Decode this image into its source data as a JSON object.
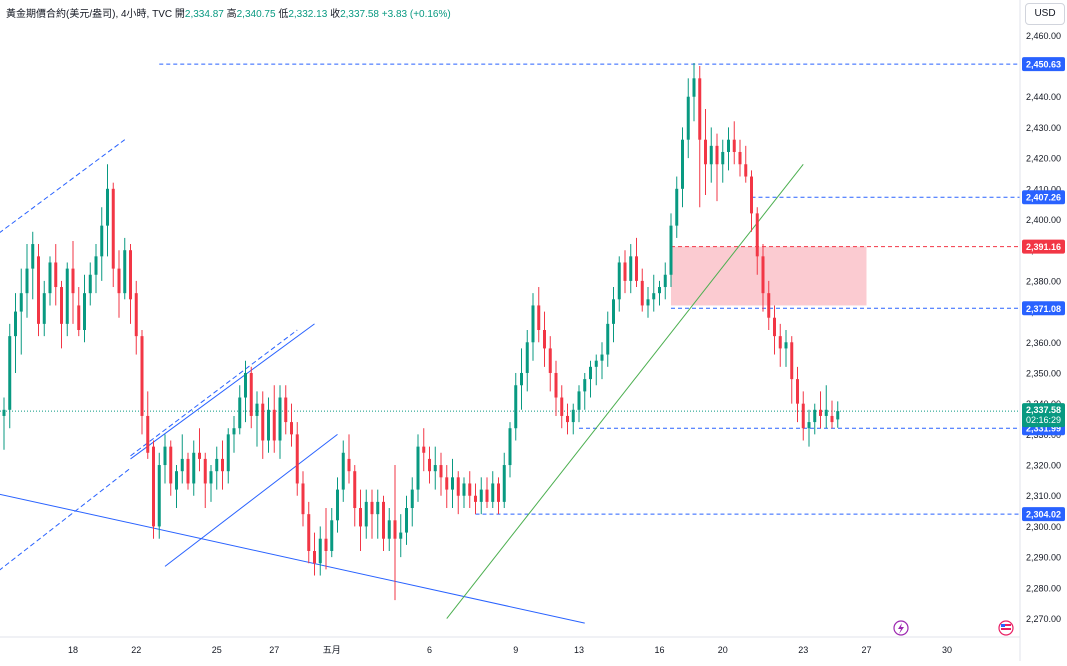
{
  "legend": {
    "symbol": "黃金期價合約(美元/盎司), 4小時, TVC",
    "open_label": "開",
    "open": "2,334.87",
    "high_label": "高",
    "high": "2,340.75",
    "low_label": "低",
    "low": "2,332.13",
    "close_label": "收",
    "close": "2,337.58",
    "change": "+3.83 (+0.16%)"
  },
  "currency": "USD",
  "colors": {
    "up": "#089981",
    "down": "#f23645",
    "axis_text": "#131722",
    "level_line": "#2962ff",
    "trend_blue": "#2962ff",
    "trend_green": "#4caf50",
    "zone_fill": "#f7a1ab"
  },
  "chart_data": {
    "type": "candlestick",
    "ylim": [
      2263,
      2465
    ],
    "y_ticks": [
      2270,
      2280,
      2290,
      2300,
      2310,
      2320,
      2330,
      2340,
      2350,
      2360,
      2370,
      2380,
      2390,
      2400,
      2410,
      2420,
      2430,
      2440,
      2450,
      2460
    ],
    "y_tick_labels": [
      "2,270.00",
      "2,280.00",
      "2,290.00",
      "2,300.00",
      "2,310.00",
      "2,320.00",
      "2,330.00",
      "2,340.00",
      "2,350.00",
      "2,360.00",
      "2,370.00",
      "2,380.00",
      "2,390.00",
      "2,400.00",
      "2,410.00",
      "2,420.00",
      "2,430.00",
      "2,440.00",
      "2,450.00",
      "2,460.00"
    ],
    "x_ticks": [
      {
        "label": "18",
        "bar": 12
      },
      {
        "label": "22",
        "bar": 23
      },
      {
        "label": "25",
        "bar": 37
      },
      {
        "label": "27",
        "bar": 47
      },
      {
        "label": "五月",
        "bar": 57
      },
      {
        "label": "6",
        "bar": 74
      },
      {
        "label": "9",
        "bar": 89
      },
      {
        "label": "13",
        "bar": 100
      },
      {
        "label": "16",
        "bar": 114
      },
      {
        "label": "20",
        "bar": 125
      },
      {
        "label": "23",
        "bar": 139
      },
      {
        "label": "27",
        "bar": 150
      },
      {
        "label": "30",
        "bar": 164
      }
    ],
    "price_levels": [
      {
        "value": 2450.63,
        "label": "2,450.63",
        "color": "#2962ff",
        "from_bar": 27
      },
      {
        "value": 2407.26,
        "label": "2,407.26",
        "color": "#2962ff",
        "from_bar": 130
      },
      {
        "value": 2391.16,
        "label": "2,391.16",
        "color": "#f23645",
        "from_bar": 116
      },
      {
        "value": 2371.08,
        "label": "2,371.08",
        "color": "#2962ff",
        "from_bar": 116
      },
      {
        "value": 2331.99,
        "label": "2,331.99",
        "color": "#2962ff",
        "from_bar": 100
      },
      {
        "value": 2304.02,
        "label": "2,304.02",
        "color": "#2962ff",
        "from_bar": 82
      }
    ],
    "last_price": {
      "value": 2337.58,
      "label": "2,337.58",
      "countdown": "02:16:29"
    },
    "zone": {
      "from_bar": 116,
      "to_bar": 150,
      "y1": 2372,
      "y2": 2391.16
    },
    "trendlines": [
      {
        "x1": -2,
        "y1": 2311,
        "x2": 101,
        "y2": 2268.5,
        "color": "#2962ff",
        "dash": false
      },
      {
        "x1": 28,
        "y1": 2287,
        "x2": 58,
        "y2": 2330,
        "color": "#2962ff",
        "dash": false
      },
      {
        "x1": 22,
        "y1": 2322,
        "x2": 54,
        "y2": 2366,
        "color": "#2962ff",
        "dash": false
      },
      {
        "x1": 22,
        "y1": 2323,
        "x2": 51,
        "y2": 2364,
        "color": "#2962ff",
        "dash": true
      },
      {
        "x1": -2,
        "y1": 2284,
        "x2": 22,
        "y2": 2319,
        "color": "#2962ff",
        "dash": true
      },
      {
        "x1": -2,
        "y1": 2394,
        "x2": 21,
        "y2": 2426,
        "color": "#2962ff",
        "dash": true
      },
      {
        "x1": 77,
        "y1": 2270,
        "x2": 139,
        "y2": 2418,
        "color": "#4caf50",
        "dash": false
      }
    ],
    "ohlc": [
      [
        2336,
        2342,
        2325,
        2338
      ],
      [
        2338,
        2366,
        2332,
        2362
      ],
      [
        2362,
        2376,
        2350,
        2370
      ],
      [
        2370,
        2384,
        2356,
        2376
      ],
      [
        2376,
        2392,
        2368,
        2384
      ],
      [
        2384,
        2396,
        2374,
        2392
      ],
      [
        2388,
        2392,
        2362,
        2366
      ],
      [
        2366,
        2380,
        2362,
        2376
      ],
      [
        2376,
        2388,
        2372,
        2386
      ],
      [
        2386,
        2392,
        2372,
        2378
      ],
      [
        2378,
        2380,
        2358,
        2366
      ],
      [
        2366,
        2386,
        2362,
        2384
      ],
      [
        2384,
        2393,
        2366,
        2376
      ],
      [
        2372,
        2378,
        2362,
        2364
      ],
      [
        2364,
        2382,
        2360,
        2376
      ],
      [
        2376,
        2386,
        2372,
        2382
      ],
      [
        2382,
        2392,
        2376,
        2388
      ],
      [
        2388,
        2404,
        2380,
        2398
      ],
      [
        2398,
        2418,
        2388,
        2410
      ],
      [
        2410,
        2412,
        2378,
        2384
      ],
      [
        2384,
        2390,
        2368,
        2376
      ],
      [
        2376,
        2394,
        2374,
        2390
      ],
      [
        2390,
        2392,
        2366,
        2374
      ],
      [
        2376,
        2380,
        2356,
        2362
      ],
      [
        2362,
        2364,
        2330,
        2336
      ],
      [
        2336,
        2344,
        2322,
        2324
      ],
      [
        2326,
        2328,
        2296,
        2300
      ],
      [
        2300,
        2324,
        2296,
        2320
      ],
      [
        2320,
        2330,
        2314,
        2326
      ],
      [
        2326,
        2328,
        2310,
        2314
      ],
      [
        2312,
        2320,
        2306,
        2318
      ],
      [
        2318,
        2330,
        2314,
        2322
      ],
      [
        2322,
        2324,
        2312,
        2314
      ],
      [
        2314,
        2328,
        2310,
        2324
      ],
      [
        2324,
        2332,
        2318,
        2322
      ],
      [
        2322,
        2324,
        2306,
        2314
      ],
      [
        2314,
        2320,
        2308,
        2318
      ],
      [
        2318,
        2326,
        2312,
        2322
      ],
      [
        2322,
        2328,
        2312,
        2318
      ],
      [
        2318,
        2332,
        2314,
        2330
      ],
      [
        2330,
        2336,
        2324,
        2332
      ],
      [
        2332,
        2346,
        2330,
        2342
      ],
      [
        2342,
        2354,
        2334,
        2350
      ],
      [
        2350,
        2352,
        2332,
        2336
      ],
      [
        2336,
        2344,
        2326,
        2340
      ],
      [
        2340,
        2344,
        2322,
        2328
      ],
      [
        2328,
        2342,
        2324,
        2338
      ],
      [
        2338,
        2346,
        2324,
        2328
      ],
      [
        2328,
        2346,
        2322,
        2342
      ],
      [
        2342,
        2346,
        2330,
        2334
      ],
      [
        2334,
        2340,
        2326,
        2330
      ],
      [
        2330,
        2334,
        2310,
        2314
      ],
      [
        2314,
        2318,
        2300,
        2304
      ],
      [
        2304,
        2308,
        2288,
        2292
      ],
      [
        2292,
        2298,
        2284,
        2288
      ],
      [
        2288,
        2300,
        2284,
        2296
      ],
      [
        2296,
        2306,
        2286,
        2292
      ],
      [
        2292,
        2306,
        2290,
        2302
      ],
      [
        2302,
        2316,
        2298,
        2312
      ],
      [
        2312,
        2328,
        2308,
        2324
      ],
      [
        2322,
        2330,
        2314,
        2318
      ],
      [
        2318,
        2320,
        2300,
        2306
      ],
      [
        2306,
        2312,
        2292,
        2300
      ],
      [
        2300,
        2312,
        2296,
        2308
      ],
      [
        2308,
        2312,
        2296,
        2304
      ],
      [
        2304,
        2312,
        2296,
        2308
      ],
      [
        2308,
        2310,
        2292,
        2296
      ],
      [
        2296,
        2306,
        2292,
        2302
      ],
      [
        2302,
        2320,
        2276,
        2296
      ],
      [
        2296,
        2304,
        2290,
        2298
      ],
      [
        2298,
        2310,
        2294,
        2306
      ],
      [
        2306,
        2316,
        2300,
        2312
      ],
      [
        2312,
        2330,
        2308,
        2326
      ],
      [
        2326,
        2332,
        2318,
        2324
      ],
      [
        2322,
        2326,
        2314,
        2318
      ],
      [
        2318,
        2326,
        2312,
        2320
      ],
      [
        2320,
        2324,
        2310,
        2316
      ],
      [
        2316,
        2320,
        2306,
        2312
      ],
      [
        2312,
        2322,
        2306,
        2316
      ],
      [
        2316,
        2318,
        2304,
        2310
      ],
      [
        2310,
        2316,
        2306,
        2314
      ],
      [
        2314,
        2318,
        2306,
        2310
      ],
      [
        2310,
        2314,
        2304,
        2308
      ],
      [
        2308,
        2316,
        2304,
        2312
      ],
      [
        2312,
        2316,
        2306,
        2308
      ],
      [
        2308,
        2318,
        2306,
        2314
      ],
      [
        2314,
        2316,
        2304,
        2308
      ],
      [
        2308,
        2324,
        2306,
        2320
      ],
      [
        2320,
        2334,
        2316,
        2332
      ],
      [
        2332,
        2350,
        2328,
        2346
      ],
      [
        2346,
        2358,
        2338,
        2350
      ],
      [
        2350,
        2364,
        2344,
        2360
      ],
      [
        2360,
        2376,
        2354,
        2372
      ],
      [
        2372,
        2378,
        2360,
        2364
      ],
      [
        2364,
        2370,
        2352,
        2358
      ],
      [
        2358,
        2362,
        2344,
        2350
      ],
      [
        2350,
        2354,
        2336,
        2342
      ],
      [
        2342,
        2346,
        2332,
        2336
      ],
      [
        2336,
        2340,
        2330,
        2334
      ],
      [
        2334,
        2340,
        2330,
        2338
      ],
      [
        2338,
        2346,
        2334,
        2344
      ],
      [
        2344,
        2350,
        2338,
        2348
      ],
      [
        2348,
        2354,
        2342,
        2352
      ],
      [
        2352,
        2356,
        2346,
        2354
      ],
      [
        2354,
        2360,
        2348,
        2356
      ],
      [
        2356,
        2370,
        2352,
        2366
      ],
      [
        2366,
        2378,
        2360,
        2374
      ],
      [
        2374,
        2388,
        2370,
        2386
      ],
      [
        2386,
        2390,
        2376,
        2380
      ],
      [
        2380,
        2392,
        2376,
        2388
      ],
      [
        2388,
        2394,
        2378,
        2380
      ],
      [
        2380,
        2384,
        2370,
        2372
      ],
      [
        2372,
        2378,
        2368,
        2374
      ],
      [
        2374,
        2382,
        2370,
        2376
      ],
      [
        2376,
        2380,
        2372,
        2378
      ],
      [
        2378,
        2386,
        2374,
        2382
      ],
      [
        2382,
        2402,
        2378,
        2398
      ],
      [
        2398,
        2414,
        2394,
        2410
      ],
      [
        2410,
        2430,
        2404,
        2426
      ],
      [
        2426,
        2446,
        2420,
        2440
      ],
      [
        2440,
        2451,
        2432,
        2446
      ],
      [
        2446,
        2450,
        2404,
        2426
      ],
      [
        2426,
        2436,
        2408,
        2418
      ],
      [
        2418,
        2430,
        2412,
        2424
      ],
      [
        2424,
        2428,
        2406,
        2418
      ],
      [
        2418,
        2426,
        2412,
        2422
      ],
      [
        2422,
        2430,
        2416,
        2426
      ],
      [
        2426,
        2432,
        2418,
        2422
      ],
      [
        2422,
        2426,
        2414,
        2418
      ],
      [
        2418,
        2424,
        2412,
        2414
      ],
      [
        2414,
        2416,
        2396,
        2402
      ],
      [
        2402,
        2404,
        2382,
        2388
      ],
      [
        2388,
        2392,
        2370,
        2376
      ],
      [
        2376,
        2380,
        2364,
        2368
      ],
      [
        2368,
        2372,
        2356,
        2362
      ],
      [
        2362,
        2366,
        2352,
        2358
      ],
      [
        2358,
        2364,
        2352,
        2360
      ],
      [
        2360,
        2362,
        2340,
        2348
      ],
      [
        2348,
        2352,
        2334,
        2340
      ],
      [
        2340,
        2344,
        2328,
        2332
      ],
      [
        2332,
        2338,
        2326,
        2334
      ],
      [
        2334,
        2340,
        2330,
        2338
      ],
      [
        2338,
        2344,
        2332,
        2336
      ],
      [
        2336,
        2346,
        2332,
        2338
      ],
      [
        2336,
        2341,
        2332,
        2334
      ],
      [
        2334.87,
        2340.75,
        2332.13,
        2337.58
      ]
    ]
  }
}
